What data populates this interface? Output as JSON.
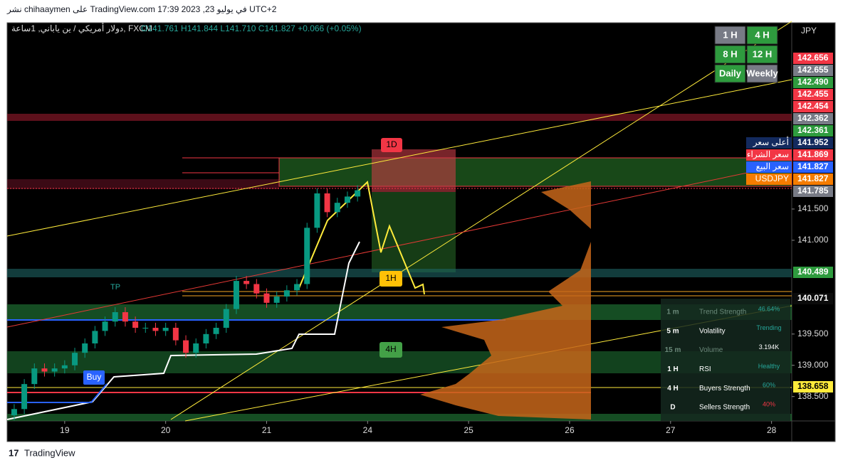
{
  "header": {
    "published": "نشر chihaaymen على TradingView.com في يوليو 23, 2023 17:39 UTC+2",
    "symbol": "دولار أمريكي / ين ياباني, 1ساعة, FXCM",
    "ohlc": "O141.761 H141.844 L141.710 C141.827 +0.066 (+0.05%)"
  },
  "timeframes": [
    "1 H",
    "4 H",
    "8 H",
    "12 H",
    "Daily",
    "Weekly"
  ],
  "currency": "JPY",
  "chart_data": {
    "type": "candlestick",
    "x": [
      -0.5,
      -0.4,
      -0.3,
      -0.2,
      -0.1,
      0,
      0.1,
      0.2,
      0.3,
      0.4,
      0.5,
      0.6,
      0.7,
      0.8,
      0.9,
      1,
      1.1,
      1.2,
      1.3,
      1.4,
      1.5,
      1.6,
      1.7,
      1.8,
      1.9,
      2,
      2.1,
      2.2,
      2.3,
      2.4,
      2.5,
      2.6,
      2.7,
      2.8,
      2.9
    ],
    "open": [
      138.2,
      138.3,
      138.7,
      138.95,
      138.9,
      138.95,
      139.0,
      139.2,
      139.35,
      139.55,
      139.7,
      139.85,
      139.7,
      139.6,
      139.6,
      139.55,
      139.6,
      139.4,
      139.2,
      139.35,
      139.5,
      139.6,
      139.9,
      140.35,
      140.3,
      140.15,
      140.0,
      140.1,
      140.2,
      140.3,
      141.2,
      141.75,
      141.45,
      141.6,
      141.7
    ],
    "high": [
      138.38,
      138.78,
      139.03,
      139.03,
      139.03,
      139.08,
      139.28,
      139.43,
      139.63,
      139.78,
      139.93,
      139.93,
      139.78,
      139.68,
      139.68,
      139.68,
      139.68,
      139.48,
      139.43,
      139.58,
      139.68,
      139.98,
      140.43,
      140.43,
      140.38,
      140.23,
      140.18,
      140.28,
      140.38,
      141.28,
      141.83,
      141.83,
      141.68,
      141.78,
      141.88
    ],
    "low": [
      138.12,
      138.22,
      138.62,
      138.82,
      138.82,
      138.87,
      138.92,
      139.12,
      139.27,
      139.47,
      139.62,
      139.62,
      139.52,
      139.52,
      139.47,
      139.47,
      139.32,
      139.12,
      139.12,
      139.27,
      139.42,
      139.52,
      139.82,
      140.22,
      140.07,
      139.92,
      139.92,
      140.02,
      140.12,
      140.22,
      141.12,
      141.37,
      141.37,
      141.52,
      141.62
    ],
    "close": [
      138.3,
      138.7,
      138.95,
      138.9,
      138.95,
      139.0,
      139.2,
      139.35,
      139.55,
      139.7,
      139.85,
      139.7,
      139.6,
      139.6,
      139.55,
      139.6,
      139.4,
      139.2,
      139.35,
      139.5,
      139.6,
      139.9,
      140.35,
      140.3,
      140.15,
      140.0,
      140.1,
      140.2,
      140.3,
      141.2,
      141.75,
      141.45,
      141.6,
      141.7,
      141.8
    ],
    "up_color": "#089981",
    "down_color": "#f23645",
    "xlim": [
      -0.57,
      7.2
    ],
    "xticks": [
      {
        "value": 0,
        "label": "19"
      },
      {
        "value": 1,
        "label": "20"
      },
      {
        "value": 2,
        "label": "21"
      },
      {
        "value": 3,
        "label": "24"
      },
      {
        "value": 4,
        "label": "25"
      },
      {
        "value": 5,
        "label": "26"
      },
      {
        "value": 6,
        "label": "27"
      },
      {
        "value": 7,
        "label": "28"
      }
    ],
    "ylim": [
      138.11,
      144.48
    ],
    "yticks": [
      {
        "value": 141.5,
        "label": "141.500"
      },
      {
        "value": 141,
        "label": "141.000"
      },
      {
        "value": 139.5,
        "label": "139.500"
      },
      {
        "value": 139,
        "label": "139.000"
      },
      {
        "value": 138.5,
        "label": "138.500"
      }
    ]
  },
  "price_tags": [
    {
      "value": "142.656",
      "color": "#f23645"
    },
    {
      "value": "142.655",
      "color": "#787b86"
    },
    {
      "value": "142.490",
      "color": "#2e9b3e"
    },
    {
      "value": "142.455",
      "color": "#f23645"
    },
    {
      "value": "142.454",
      "color": "#f23645"
    },
    {
      "value": "142.362",
      "color": "#787b86"
    },
    {
      "value": "142.361",
      "color": "#2e9b3e"
    },
    {
      "name": "أعلى سعر",
      "value": "141.952",
      "color": "#132a5e"
    },
    {
      "name": "سعر الشراء",
      "value": "141.869",
      "color": "#f23645"
    },
    {
      "name": "سعر البيع",
      "value": "141.827",
      "color": "#2962ff"
    },
    {
      "name": "USDJPY",
      "value": "141.827",
      "color": "#f57c00"
    },
    {
      "value": "141.785",
      "color": "#787b86"
    },
    {
      "value": "140.489",
      "color": "#2e9b3e"
    },
    {
      "value": "140.071",
      "color": "#0b0b0b"
    },
    {
      "value": "138.658",
      "color": "#ffeb3b"
    }
  ],
  "annotations": {
    "d1": "1D",
    "h1": "1H",
    "h4": "4H",
    "buy": "Buy",
    "tp": "TP"
  },
  "panel": [
    {
      "tf": "1 m",
      "label": "Trend Strength",
      "value": "46.64%"
    },
    {
      "tf": "5 m",
      "label": "Volatility",
      "value": "Trending"
    },
    {
      "tf": "15 m",
      "label": "Volume",
      "value": "3.194K"
    },
    {
      "tf": "1 H",
      "label": "RSI",
      "value": "Healthy"
    },
    {
      "tf": "4 H",
      "label": "Buyers Strength",
      "value": "60%"
    },
    {
      "tf": "D",
      "label": "Sellers Strength",
      "value": "40%"
    }
  ],
  "footer": "TradingView"
}
